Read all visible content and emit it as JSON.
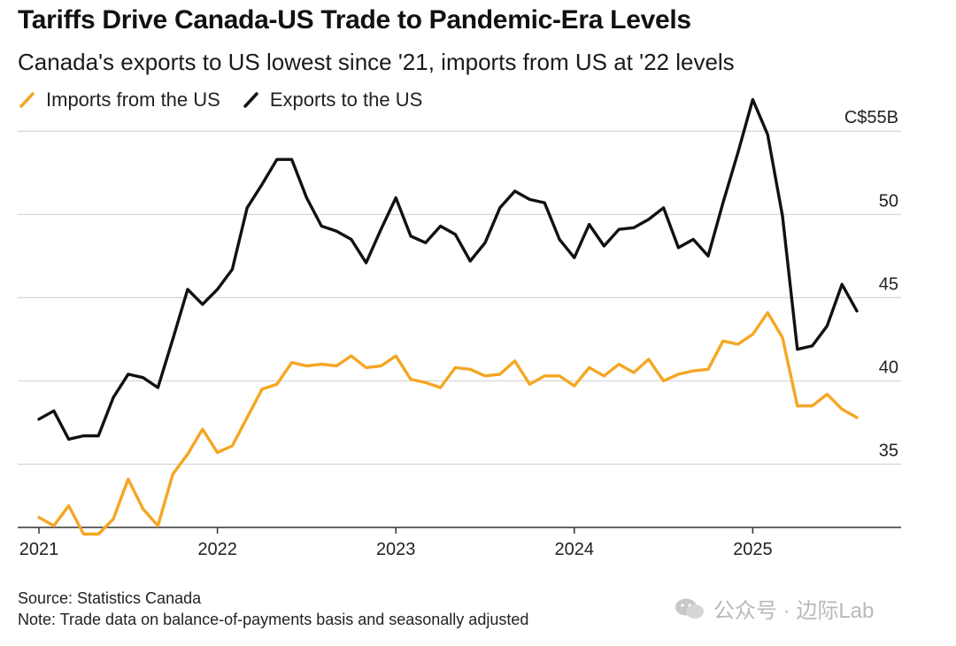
{
  "title": "Tariffs Drive Canada-US Trade to Pandemic-Era Levels",
  "subtitle": "Canada's exports to US lowest since '21, imports from US at '22 levels",
  "source": "Source: Statistics Canada",
  "note": "Note: Trade data on balance-of-payments basis and seasonally adjusted",
  "watermark": "公众号 · 边际Lab",
  "chart_data": {
    "type": "line",
    "title": "Tariffs Drive Canada-US Trade to Pandemic-Era Levels",
    "subtitle": "Canada's exports to US lowest since '21, imports from US at '22 levels",
    "ylabel_unit": "C$ billions",
    "ylim": [
      31.2,
      56.5
    ],
    "yticks": [
      35,
      40,
      45,
      50,
      55
    ],
    "ytick_labels": [
      "35",
      "40",
      "45",
      "50",
      "C$55B"
    ],
    "xticks": [
      "2021",
      "2022",
      "2023",
      "2024",
      "2025"
    ],
    "x_start": "2021-01",
    "grid": "horizontal",
    "legend_position": "top-left",
    "series": [
      {
        "name": "Imports from the US",
        "color": "#f5a623",
        "values": [
          31.8,
          31.3,
          32.5,
          30.8,
          30.8,
          31.7,
          34.1,
          32.3,
          31.3,
          34.4,
          35.6,
          37.1,
          35.7,
          36.1,
          37.8,
          39.5,
          39.8,
          41.1,
          40.9,
          41.0,
          40.9,
          41.5,
          40.8,
          40.9,
          41.5,
          40.1,
          39.9,
          39.6,
          40.8,
          40.7,
          40.3,
          40.4,
          41.2,
          39.8,
          40.3,
          40.3,
          39.7,
          40.8,
          40.3,
          41.0,
          40.5,
          41.3,
          40.0,
          40.4,
          40.6,
          40.7,
          42.4,
          42.2,
          42.8,
          44.1,
          42.6,
          38.5,
          38.5,
          39.2,
          38.3,
          37.8
        ]
      },
      {
        "name": "Exports to the US",
        "color": "#111111",
        "values": [
          37.7,
          38.2,
          36.5,
          36.7,
          36.7,
          39.0,
          40.4,
          40.2,
          39.6,
          42.5,
          45.5,
          44.6,
          45.5,
          46.7,
          50.4,
          51.8,
          53.3,
          53.3,
          51.0,
          49.3,
          49.0,
          48.5,
          47.1,
          49.1,
          51.0,
          48.7,
          48.3,
          49.3,
          48.8,
          47.2,
          48.3,
          50.4,
          51.4,
          50.9,
          50.7,
          48.5,
          47.4,
          49.4,
          48.1,
          49.1,
          49.2,
          49.7,
          50.4,
          48.0,
          48.5,
          47.5,
          50.7,
          53.7,
          56.9,
          54.8,
          49.9,
          41.9,
          42.1,
          43.3,
          45.8,
          44.2
        ]
      }
    ]
  }
}
